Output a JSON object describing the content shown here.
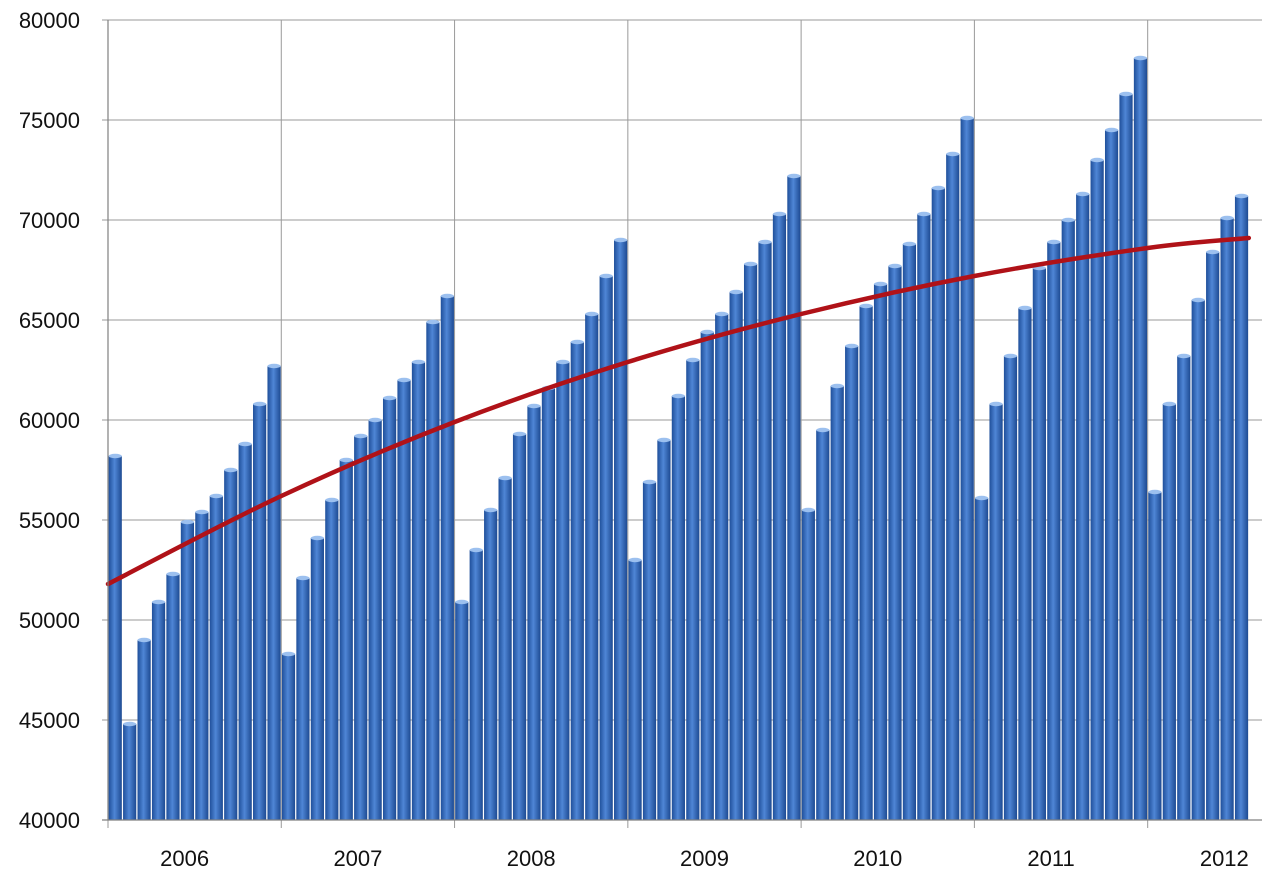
{
  "chart_data": {
    "type": "bar",
    "title": "",
    "xlabel": "",
    "ylabel": "",
    "ylim": [
      40000,
      80000
    ],
    "y_ticks": [
      40000,
      45000,
      50000,
      55000,
      60000,
      65000,
      70000,
      75000,
      80000
    ],
    "x_tick_labels": [
      "2006",
      "2007",
      "2008",
      "2009",
      "2010",
      "2011",
      "2012"
    ],
    "grid": true,
    "legend": "none",
    "series": [
      {
        "type": "bar",
        "color": "#2f63b0",
        "values": [
          58200,
          44800,
          49000,
          50900,
          52300,
          54900,
          55400,
          56200,
          57500,
          58800,
          60800,
          62700,
          48300,
          52100,
          54100,
          56000,
          58000,
          59200,
          60000,
          61100,
          62000,
          62900,
          64900,
          66200,
          50900,
          53500,
          55500,
          57100,
          59300,
          60700,
          61600,
          62900,
          63900,
          65300,
          67200,
          69000,
          53000,
          56900,
          59000,
          61200,
          63000,
          64400,
          65300,
          66400,
          67800,
          68900,
          70300,
          72200,
          55500,
          59500,
          61700,
          63700,
          65700,
          66800,
          67700,
          68800,
          70300,
          71600,
          73300,
          75100,
          56100,
          60800,
          63200,
          65600,
          67600,
          68900,
          70000,
          71300,
          73000,
          74500,
          76300,
          78100,
          56400,
          60800,
          63200,
          66000,
          68400,
          70100,
          71200
        ]
      },
      {
        "type": "line",
        "color": "#b01218",
        "trendline": "polynomial",
        "x_index": [
          0,
          12,
          24,
          36,
          48,
          60,
          72,
          79
        ],
        "values": [
          51800,
          56200,
          59900,
          62900,
          65300,
          67200,
          68600,
          69100
        ]
      }
    ]
  }
}
